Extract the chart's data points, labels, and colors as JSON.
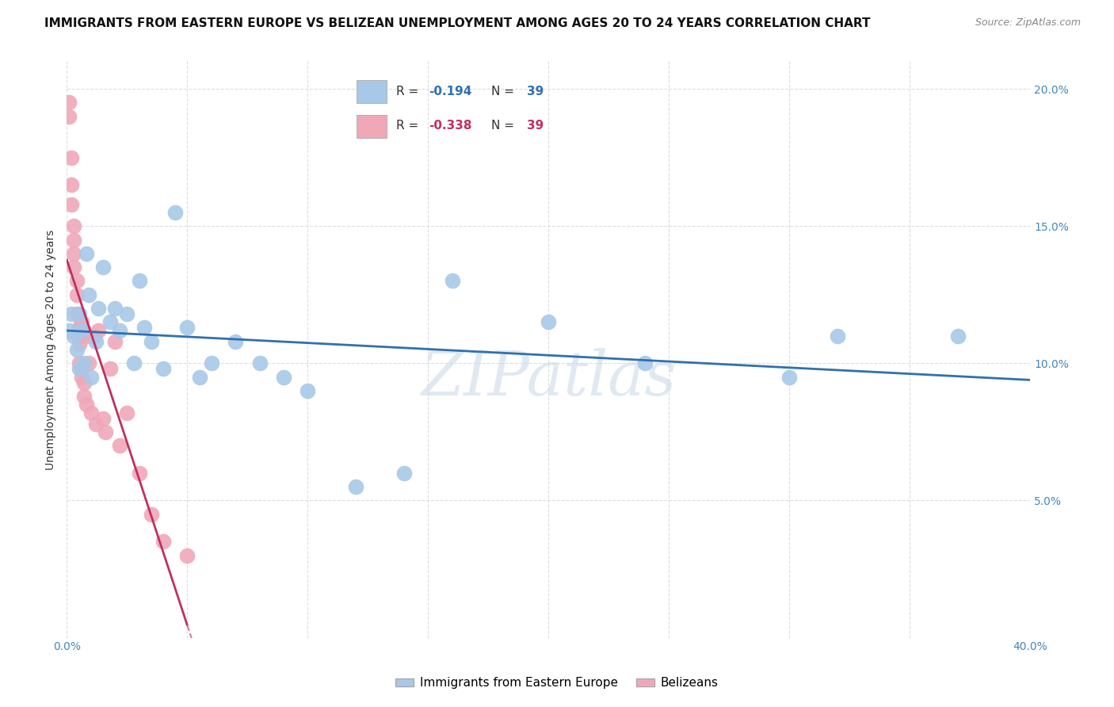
{
  "title": "IMMIGRANTS FROM EASTERN EUROPE VS BELIZEAN UNEMPLOYMENT AMONG AGES 20 TO 24 YEARS CORRELATION CHART",
  "source": "Source: ZipAtlas.com",
  "ylabel": "Unemployment Among Ages 20 to 24 years",
  "xlim": [
    0.0,
    0.4
  ],
  "ylim": [
    0.0,
    0.21
  ],
  "xticks": [
    0.0,
    0.05,
    0.1,
    0.15,
    0.2,
    0.25,
    0.3,
    0.35,
    0.4
  ],
  "yticks": [
    0.0,
    0.05,
    0.1,
    0.15,
    0.2
  ],
  "blue_R": -0.194,
  "blue_N": 39,
  "pink_R": -0.338,
  "pink_N": 39,
  "blue_color": "#a8c8e8",
  "blue_line_color": "#3070b0",
  "pink_color": "#f0a8b8",
  "pink_line_color": "#c03060",
  "pink_dash_color": "#d08090",
  "watermark": "ZIPatlas",
  "blue_scatter_x": [
    0.001,
    0.002,
    0.003,
    0.004,
    0.005,
    0.005,
    0.006,
    0.007,
    0.008,
    0.009,
    0.01,
    0.012,
    0.013,
    0.015,
    0.018,
    0.02,
    0.022,
    0.025,
    0.028,
    0.03,
    0.032,
    0.035,
    0.04,
    0.045,
    0.05,
    0.055,
    0.06,
    0.07,
    0.08,
    0.09,
    0.1,
    0.12,
    0.14,
    0.16,
    0.2,
    0.24,
    0.3,
    0.32,
    0.37
  ],
  "blue_scatter_y": [
    0.112,
    0.118,
    0.11,
    0.105,
    0.118,
    0.098,
    0.112,
    0.1,
    0.14,
    0.125,
    0.095,
    0.108,
    0.12,
    0.135,
    0.115,
    0.12,
    0.112,
    0.118,
    0.1,
    0.13,
    0.113,
    0.108,
    0.098,
    0.155,
    0.113,
    0.095,
    0.1,
    0.108,
    0.1,
    0.095,
    0.09,
    0.055,
    0.06,
    0.13,
    0.115,
    0.1,
    0.095,
    0.11,
    0.11
  ],
  "pink_scatter_x": [
    0.001,
    0.001,
    0.002,
    0.002,
    0.002,
    0.003,
    0.003,
    0.003,
    0.003,
    0.004,
    0.004,
    0.004,
    0.005,
    0.005,
    0.005,
    0.005,
    0.006,
    0.006,
    0.006,
    0.007,
    0.007,
    0.007,
    0.008,
    0.008,
    0.009,
    0.01,
    0.011,
    0.012,
    0.013,
    0.015,
    0.016,
    0.018,
    0.02,
    0.022,
    0.025,
    0.03,
    0.035,
    0.04,
    0.05
  ],
  "pink_scatter_y": [
    0.195,
    0.19,
    0.175,
    0.165,
    0.158,
    0.15,
    0.145,
    0.14,
    0.135,
    0.13,
    0.125,
    0.118,
    0.113,
    0.11,
    0.107,
    0.1,
    0.098,
    0.115,
    0.095,
    0.112,
    0.093,
    0.088,
    0.11,
    0.085,
    0.1,
    0.082,
    0.11,
    0.078,
    0.112,
    0.08,
    0.075,
    0.098,
    0.108,
    0.07,
    0.082,
    0.06,
    0.045,
    0.035,
    0.03
  ],
  "background_color": "#ffffff",
  "grid_color": "#dddddd"
}
